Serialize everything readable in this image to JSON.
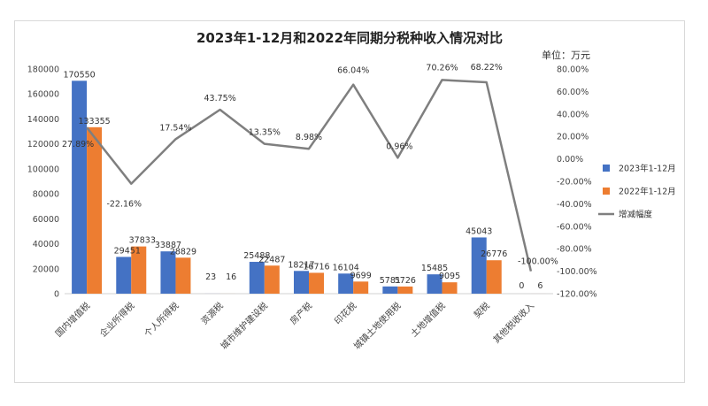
{
  "chart_data": {
    "type": "bar",
    "title": "2023年1-12月和2022年同期分税种收入情况对比",
    "unit_label": "单位：万元",
    "categories": [
      "国内增值税",
      "企业所得税",
      "个人所得税",
      "资源税",
      "城市维护建设税",
      "房产税",
      "印花税",
      "城镇土地使用税",
      "土地增值税",
      "契税",
      "其他税收收入"
    ],
    "series": [
      {
        "name": "2023年1-12月",
        "kind": "bar",
        "axis": "left",
        "color": "#4472C4",
        "values": [
          170550,
          29451,
          33887,
          23,
          25488,
          18217,
          16104,
          5781,
          15485,
          45043,
          0
        ]
      },
      {
        "name": "2022年1-12月",
        "kind": "bar",
        "axis": "left",
        "color": "#ED7D31",
        "values": [
          133355,
          37833,
          28829,
          16,
          22487,
          16716,
          9699,
          5726,
          9095,
          26776,
          6
        ]
      },
      {
        "name": "增减幅度",
        "kind": "line",
        "axis": "right",
        "color": "#7F7F7F",
        "values": [
          27.89,
          -22.16,
          17.54,
          43.75,
          13.35,
          8.98,
          66.04,
          0.96,
          70.26,
          68.22,
          -100.0
        ],
        "labels": [
          "27.89%",
          "-22.16%",
          "17.54%",
          "43.75%",
          "13.35%",
          "8.98%",
          "66.04%",
          "0.96%",
          "70.26%",
          "68.22%",
          "-100.00%"
        ]
      }
    ],
    "bar_value_labels": [
      [
        "170550",
        "29451",
        "33887",
        "23",
        "25488",
        "18217",
        "16104",
        "5781",
        "15485",
        "45043",
        "0"
      ],
      [
        "133355",
        "37833",
        "28829",
        "16",
        "22487",
        "16716",
        "9699",
        "5726",
        "9095",
        "26776",
        "6"
      ]
    ],
    "ylim": [
      0,
      180000
    ],
    "yticks": [
      0,
      20000,
      40000,
      60000,
      80000,
      100000,
      120000,
      140000,
      160000,
      180000
    ],
    "ylim_right": [
      -120,
      80
    ],
    "yticks_right": [
      -120,
      -100,
      -80,
      -60,
      -40,
      -20,
      0,
      20,
      40,
      60,
      80
    ],
    "yticks_right_labels": [
      "-120.00%",
      "-100.00%",
      "-80.00%",
      "-60.00%",
      "-40.00%",
      "-20.00%",
      "0.00%",
      "20.00%",
      "40.00%",
      "60.00%",
      "80.00%"
    ],
    "grid": false,
    "legend_position": "right"
  }
}
